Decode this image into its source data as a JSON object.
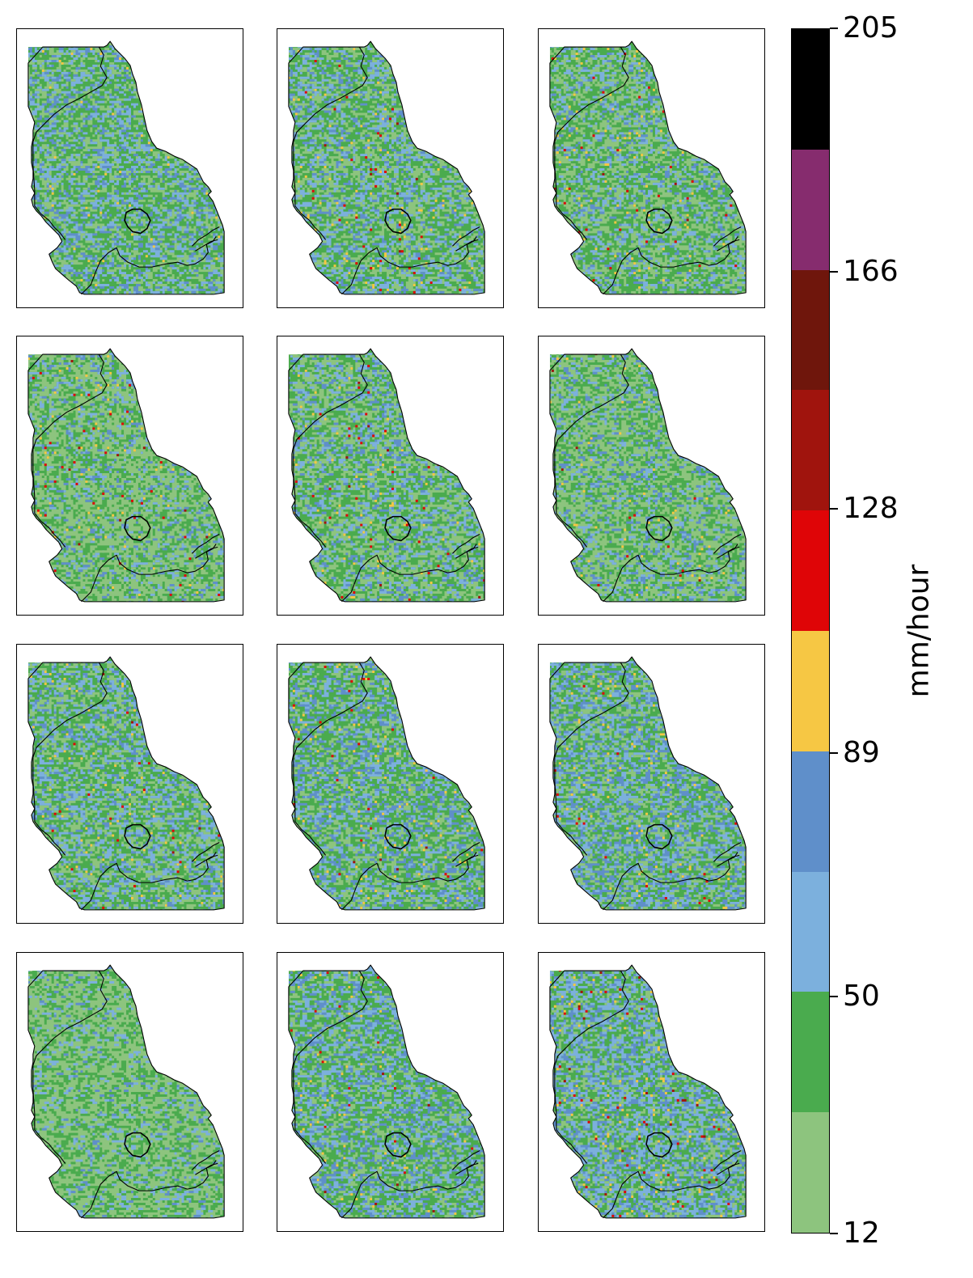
{
  "figure": {
    "panel_count": 12,
    "grid_rows": 4,
    "grid_cols": 3
  },
  "colorbar": {
    "label": "mm/hour",
    "tick_labels": [
      "12",
      "50",
      "89",
      "128",
      "166",
      "205"
    ],
    "tick_values": [
      12,
      50,
      89,
      128,
      166,
      205
    ],
    "vmin": 12,
    "vmax": 205,
    "colors": [
      "#8dc47e",
      "#4aab4e",
      "#7cb0dd",
      "#5f8fca",
      "#f6c744",
      "#df0507",
      "#a0140d",
      "#6f160c",
      "#862c6e",
      "#000000"
    ]
  },
  "maps": {
    "outline_color": "#000000",
    "panels": [
      {
        "dominant": "#4aab4e",
        "mix": [
          0.22,
          0.5,
          0.18,
          0.09,
          0.01,
          0.0,
          0.0
        ]
      },
      {
        "dominant": "#4aab4e",
        "mix": [
          0.25,
          0.5,
          0.15,
          0.08,
          0.015,
          0.004,
          0.001
        ]
      },
      {
        "dominant": "#4aab4e",
        "mix": [
          0.3,
          0.5,
          0.12,
          0.06,
          0.015,
          0.004,
          0.001
        ]
      },
      {
        "dominant": "#4aab4e",
        "mix": [
          0.38,
          0.45,
          0.1,
          0.05,
          0.012,
          0.006,
          0.002
        ]
      },
      {
        "dominant": "#4aab4e",
        "mix": [
          0.3,
          0.48,
          0.13,
          0.07,
          0.012,
          0.006,
          0.002
        ]
      },
      {
        "dominant": "#4aab4e",
        "mix": [
          0.38,
          0.45,
          0.1,
          0.06,
          0.008,
          0.001,
          0.001
        ]
      },
      {
        "dominant": "#4aab4e",
        "mix": [
          0.22,
          0.5,
          0.16,
          0.1,
          0.015,
          0.004,
          0.001
        ]
      },
      {
        "dominant": "#4aab4e",
        "mix": [
          0.18,
          0.5,
          0.18,
          0.12,
          0.015,
          0.004,
          0.001
        ]
      },
      {
        "dominant": "#4aab4e",
        "mix": [
          0.15,
          0.45,
          0.22,
          0.16,
          0.015,
          0.004,
          0.001
        ]
      },
      {
        "dominant": "#8dc47e",
        "mix": [
          0.62,
          0.27,
          0.08,
          0.03,
          0.0,
          0.0,
          0.0
        ]
      },
      {
        "dominant": "#4aab4e",
        "mix": [
          0.18,
          0.5,
          0.18,
          0.12,
          0.015,
          0.004,
          0.001
        ]
      },
      {
        "dominant": "#4aab4e",
        "mix": [
          0.15,
          0.43,
          0.22,
          0.17,
          0.02,
          0.007,
          0.003
        ]
      }
    ]
  }
}
